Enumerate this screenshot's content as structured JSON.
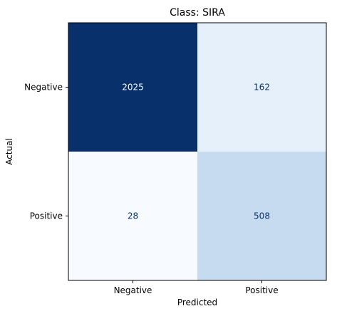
{
  "chart_data": {
    "type": "heatmap",
    "title": "Class: SIRA",
    "xlabel": "Predicted",
    "ylabel": "Actual",
    "x_categories": [
      "Negative",
      "Positive"
    ],
    "y_categories": [
      "Negative",
      "Positive"
    ],
    "values": [
      [
        2025,
        162
      ],
      [
        28,
        508
      ]
    ],
    "colormap": "Blues",
    "colors": {
      "cell_2025": "#08306b",
      "cell_162": "#e6f0fa",
      "cell_28": "#f7fbff",
      "cell_508": "#c6dbef",
      "text_dark_cell": "#f7fbff",
      "text_light_cell": "#08306b"
    }
  }
}
